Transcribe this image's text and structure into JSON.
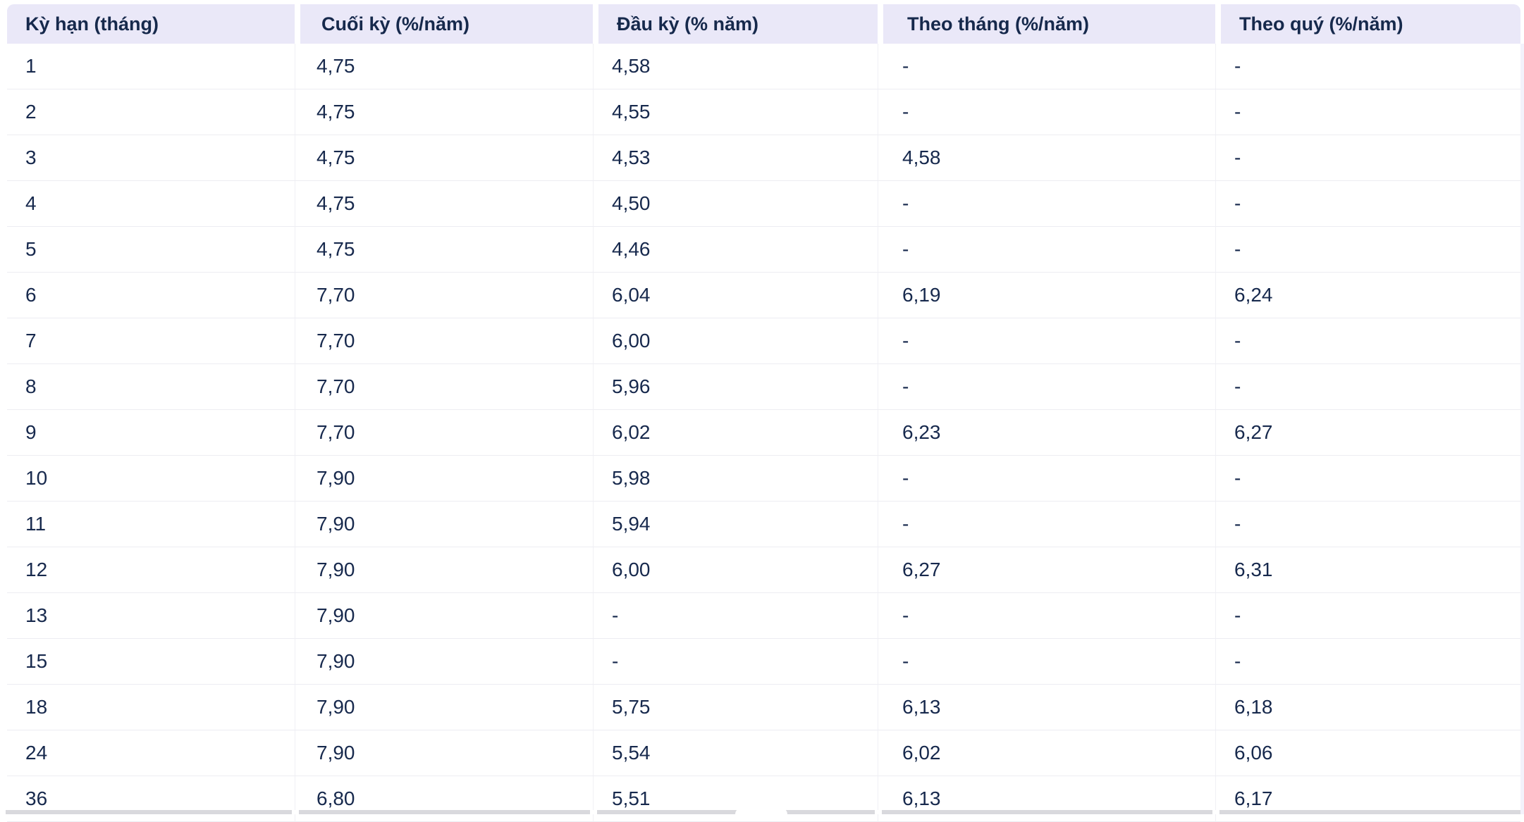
{
  "table": {
    "columns": [
      {
        "key": "term",
        "label": "Kỳ hạn (tháng)"
      },
      {
        "key": "end",
        "label": "Cuối kỳ (%/năm)"
      },
      {
        "key": "begin",
        "label": "Đầu kỳ (% năm)"
      },
      {
        "key": "monthly",
        "label": "Theo tháng (%/năm)"
      },
      {
        "key": "quarterly",
        "label": "Theo quý (%/năm)"
      }
    ],
    "rows": [
      [
        "1",
        "4,75",
        "4,58",
        "-",
        "-"
      ],
      [
        "2",
        "4,75",
        "4,55",
        "-",
        "-"
      ],
      [
        "3",
        "4,75",
        "4,53",
        "4,58",
        "-"
      ],
      [
        "4",
        "4,75",
        "4,50",
        "-",
        "-"
      ],
      [
        "5",
        "4,75",
        "4,46",
        "-",
        "-"
      ],
      [
        "6",
        "7,70",
        "6,04",
        "6,19",
        "6,24"
      ],
      [
        "7",
        "7,70",
        "6,00",
        "-",
        "-"
      ],
      [
        "8",
        "7,70",
        "5,96",
        "-",
        "-"
      ],
      [
        "9",
        "7,70",
        "6,02",
        "6,23",
        "6,27"
      ],
      [
        "10",
        "7,90",
        "5,98",
        "-",
        "-"
      ],
      [
        "11",
        "7,90",
        "5,94",
        "-",
        "-"
      ],
      [
        "12",
        "7,90",
        "6,00",
        "6,27",
        "6,31"
      ],
      [
        "13",
        "7,90",
        "-",
        "-",
        "-"
      ],
      [
        "15",
        "7,90",
        "-",
        "-",
        "-"
      ],
      [
        "18",
        "7,90",
        "5,75",
        "6,13",
        "6,18"
      ],
      [
        "24",
        "7,90",
        "5,54",
        "6,02",
        "6,06"
      ],
      [
        "36",
        "6,80",
        "5,51",
        "6,13",
        "6,17"
      ]
    ]
  },
  "colors": {
    "header_background": "#eae8f8",
    "text": "#17294d",
    "row_rule": "#ededf2",
    "column_rule": "#f0f0f5",
    "bottom_strip": "#d9d9dd",
    "right_track": "#f3f2fb",
    "page_background": "#ffffff"
  }
}
